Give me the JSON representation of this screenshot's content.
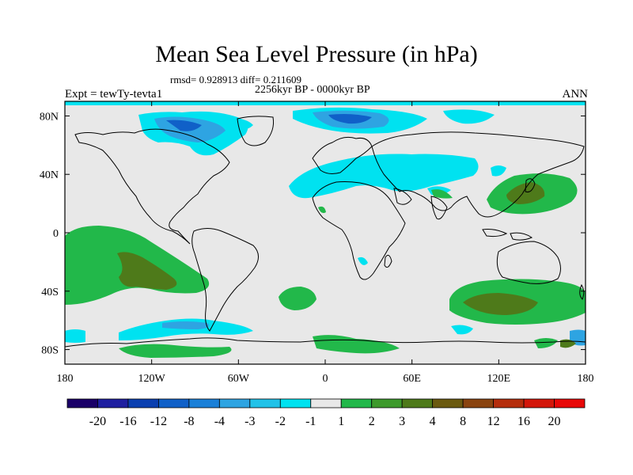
{
  "title": "Mean Sea Level Pressure (in hPa)",
  "stats": "rmsd= 0.928913 diff= 0.211609",
  "period": "2256kyr BP - 0000kyr BP",
  "experiment": "Expt = tewTy-tevta1",
  "season": "ANN",
  "lon_ticks": [
    {
      "value": -180,
      "label": "180"
    },
    {
      "value": -120,
      "label": "120W"
    },
    {
      "value": -60,
      "label": "60W"
    },
    {
      "value": 0,
      "label": "0"
    },
    {
      "value": 60,
      "label": "60E"
    },
    {
      "value": 120,
      "label": "120E"
    },
    {
      "value": 180,
      "label": "180"
    }
  ],
  "lat_ticks": [
    {
      "value": 80,
      "label": "80N"
    },
    {
      "value": 40,
      "label": "40N"
    },
    {
      "value": 0,
      "label": "0"
    },
    {
      "value": -40,
      "label": "40S"
    },
    {
      "value": -80,
      "label": "80S"
    }
  ],
  "colorbar": {
    "colors": [
      "#1a0068",
      "#1f1fa0",
      "#0a3fb0",
      "#1060c8",
      "#1a80d8",
      "#2ea4e2",
      "#21c2e8",
      "#00e2f0",
      "#e8e8e8",
      "#22b84a",
      "#3d9a2c",
      "#4e7a1a",
      "#6b5a10",
      "#8a4410",
      "#b52d0c",
      "#d3160a",
      "#e80808"
    ],
    "labels": [
      "-20",
      "-16",
      "-12",
      "-8",
      "-4",
      "-3",
      "-2",
      "-1",
      "1",
      "2",
      "3",
      "4",
      "8",
      "12",
      "16",
      "20"
    ]
  },
  "colors": {
    "background": "#e8e8e8",
    "cyan": "#00e2f0",
    "light_blue": "#2ea4e2",
    "blue": "#1060c8",
    "green": "#22b84a",
    "dark_green": "#4e7a1a"
  }
}
